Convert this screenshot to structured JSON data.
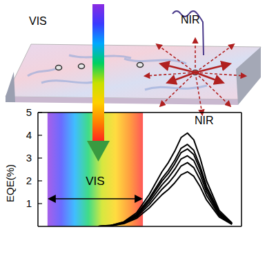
{
  "illustration": {
    "labels": [
      "VIS",
      "NIR",
      "NIR"
    ]
  },
  "chart_data": {
    "type": "line",
    "y_label": "EQE(%)",
    "x": [
      560,
      600,
      640,
      680,
      720,
      760,
      780,
      800,
      820,
      840,
      860,
      880,
      900,
      940,
      980
    ],
    "xlim": [
      370,
      1010
    ],
    "ylim": [
      0,
      5
    ],
    "yticks": [
      1,
      2,
      3,
      4,
      5
    ],
    "tick_labels": "y",
    "annotations": [
      {
        "text": "VIS",
        "x": [
          400,
          700
        ]
      }
    ],
    "series": [
      {
        "color": "#000000",
        "values": [
          0,
          0.05,
          0.2,
          0.6,
          1.4,
          2.4,
          2.8,
          3.3,
          3.9,
          4.1,
          3.8,
          3.0,
          2.0,
          0.7,
          0.15
        ]
      },
      {
        "color": "#000000",
        "values": [
          0,
          0.04,
          0.18,
          0.53,
          1.23,
          2.11,
          2.46,
          2.9,
          3.43,
          3.6,
          3.34,
          2.64,
          1.76,
          0.62,
          0.13
        ]
      },
      {
        "color": "#000000",
        "values": [
          0,
          0.04,
          0.17,
          0.5,
          1.16,
          1.99,
          2.32,
          2.74,
          3.24,
          3.4,
          3.15,
          2.49,
          1.66,
          0.58,
          0.12
        ]
      },
      {
        "color": "#000000",
        "values": [
          0,
          0.04,
          0.15,
          0.46,
          1.06,
          1.82,
          2.13,
          2.51,
          2.96,
          3.1,
          2.89,
          2.28,
          1.52,
          0.53,
          0.11
        ]
      },
      {
        "color": "#000000",
        "values": [
          0,
          0.03,
          0.14,
          0.41,
          0.95,
          1.63,
          1.9,
          2.24,
          2.65,
          2.8,
          2.58,
          2.04,
          1.36,
          0.48,
          0.1
        ]
      },
      {
        "color": "#000000",
        "values": [
          0,
          0.03,
          0.12,
          0.35,
          0.81,
          1.39,
          1.62,
          1.91,
          2.26,
          2.4,
          2.2,
          1.74,
          1.16,
          0.41,
          0.09
        ]
      }
    ]
  }
}
